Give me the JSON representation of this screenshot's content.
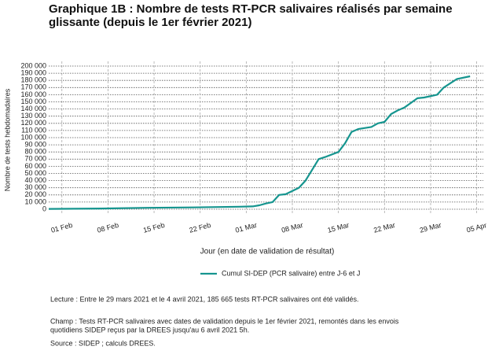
{
  "chart_data": {
    "type": "line",
    "title": "Graphique 1B : Nombre de tests RT-PCR salivaires réalisés par semaine glissante (depuis le 1er février 2021)",
    "y_label": "Nombre de tests hebdomadaires",
    "x_label": "Jour (en date de validation de résultat)",
    "x": [
      "01-30",
      "02-07",
      "02-14",
      "02-21",
      "02-28",
      "03-02",
      "03-03",
      "03-04",
      "03-05",
      "03-06",
      "03-07",
      "03-09",
      "03-10",
      "03-11",
      "03-12",
      "03-13",
      "03-15",
      "03-16",
      "03-17",
      "03-18",
      "03-20",
      "03-21",
      "03-22",
      "03-23",
      "03-24",
      "03-25",
      "03-27",
      "03-28",
      "03-30",
      "03-31",
      "04-01",
      "04-02",
      "04-04"
    ],
    "series": [
      {
        "name": "Cumul SI-DEP (PCR salivaire) entre J-6 et J",
        "color": "#16958f",
        "values": [
          400,
          1000,
          2000,
          2500,
          3500,
          4000,
          5500,
          8000,
          10000,
          20000,
          21000,
          30000,
          40000,
          55000,
          70000,
          73000,
          80000,
          92000,
          108000,
          112000,
          115000,
          120000,
          122000,
          133000,
          138000,
          142000,
          155000,
          156000,
          160000,
          170000,
          176000,
          182000,
          185665
        ]
      }
    ],
    "xlim": [
      "01-30",
      "04-06"
    ],
    "xticks": [
      {
        "value": "02-01",
        "label": "01 Feb"
      },
      {
        "value": "02-08",
        "label": "08 Feb"
      },
      {
        "value": "02-15",
        "label": "15 Feb"
      },
      {
        "value": "02-22",
        "label": "22 Feb"
      },
      {
        "value": "03-01",
        "label": "01 Mar"
      },
      {
        "value": "03-08",
        "label": "08 Mar"
      },
      {
        "value": "03-15",
        "label": "15 Mar"
      },
      {
        "value": "03-22",
        "label": "22 Mar"
      },
      {
        "value": "03-29",
        "label": "29 Mar"
      },
      {
        "value": "04-05",
        "label": "05 Apr"
      }
    ],
    "ylim": [
      0,
      200000
    ],
    "yticks": [
      0,
      {
        "value": 10000,
        "label": "10 000"
      },
      {
        "value": 20000,
        "label": "20 000"
      },
      {
        "value": 30000,
        "label": "30 000"
      },
      {
        "value": 40000,
        "label": "40 000"
      },
      {
        "value": 50000,
        "label": "50 000"
      },
      {
        "value": 60000,
        "label": "60 000"
      },
      {
        "value": 70000,
        "label": "70 000"
      },
      {
        "value": 80000,
        "label": "80 000"
      },
      {
        "value": 90000,
        "label": "90 000"
      },
      {
        "value": 100000,
        "label": "100 000"
      },
      {
        "value": 110000,
        "label": "110 000"
      },
      {
        "value": 120000,
        "label": "120 000"
      },
      {
        "value": 130000,
        "label": "130 000"
      },
      {
        "value": 140000,
        "label": "140 000"
      },
      {
        "value": 150000,
        "label": "150 000"
      },
      {
        "value": 160000,
        "label": "160 000"
      },
      {
        "value": 170000,
        "label": "170 000"
      },
      {
        "value": 180000,
        "label": "180 000"
      },
      {
        "value": 190000,
        "label": "190 000"
      },
      {
        "value": 200000,
        "label": "200 000"
      }
    ],
    "grid": true,
    "notes": [
      "Lecture : Entre le 29 mars 2021 et le 4 avril 2021, 185 665 tests RT-PCR salivaires ont été validés.",
      "Champ : Tests RT-PCR salivaires avec dates de validation depuis le 1er février 2021, remontés dans les envois",
      "quotidiens SIDEP reçus par la DREES jusqu'au 6 avril 2021 5h.",
      "Source : SIDEP ; calculs DREES."
    ]
  }
}
